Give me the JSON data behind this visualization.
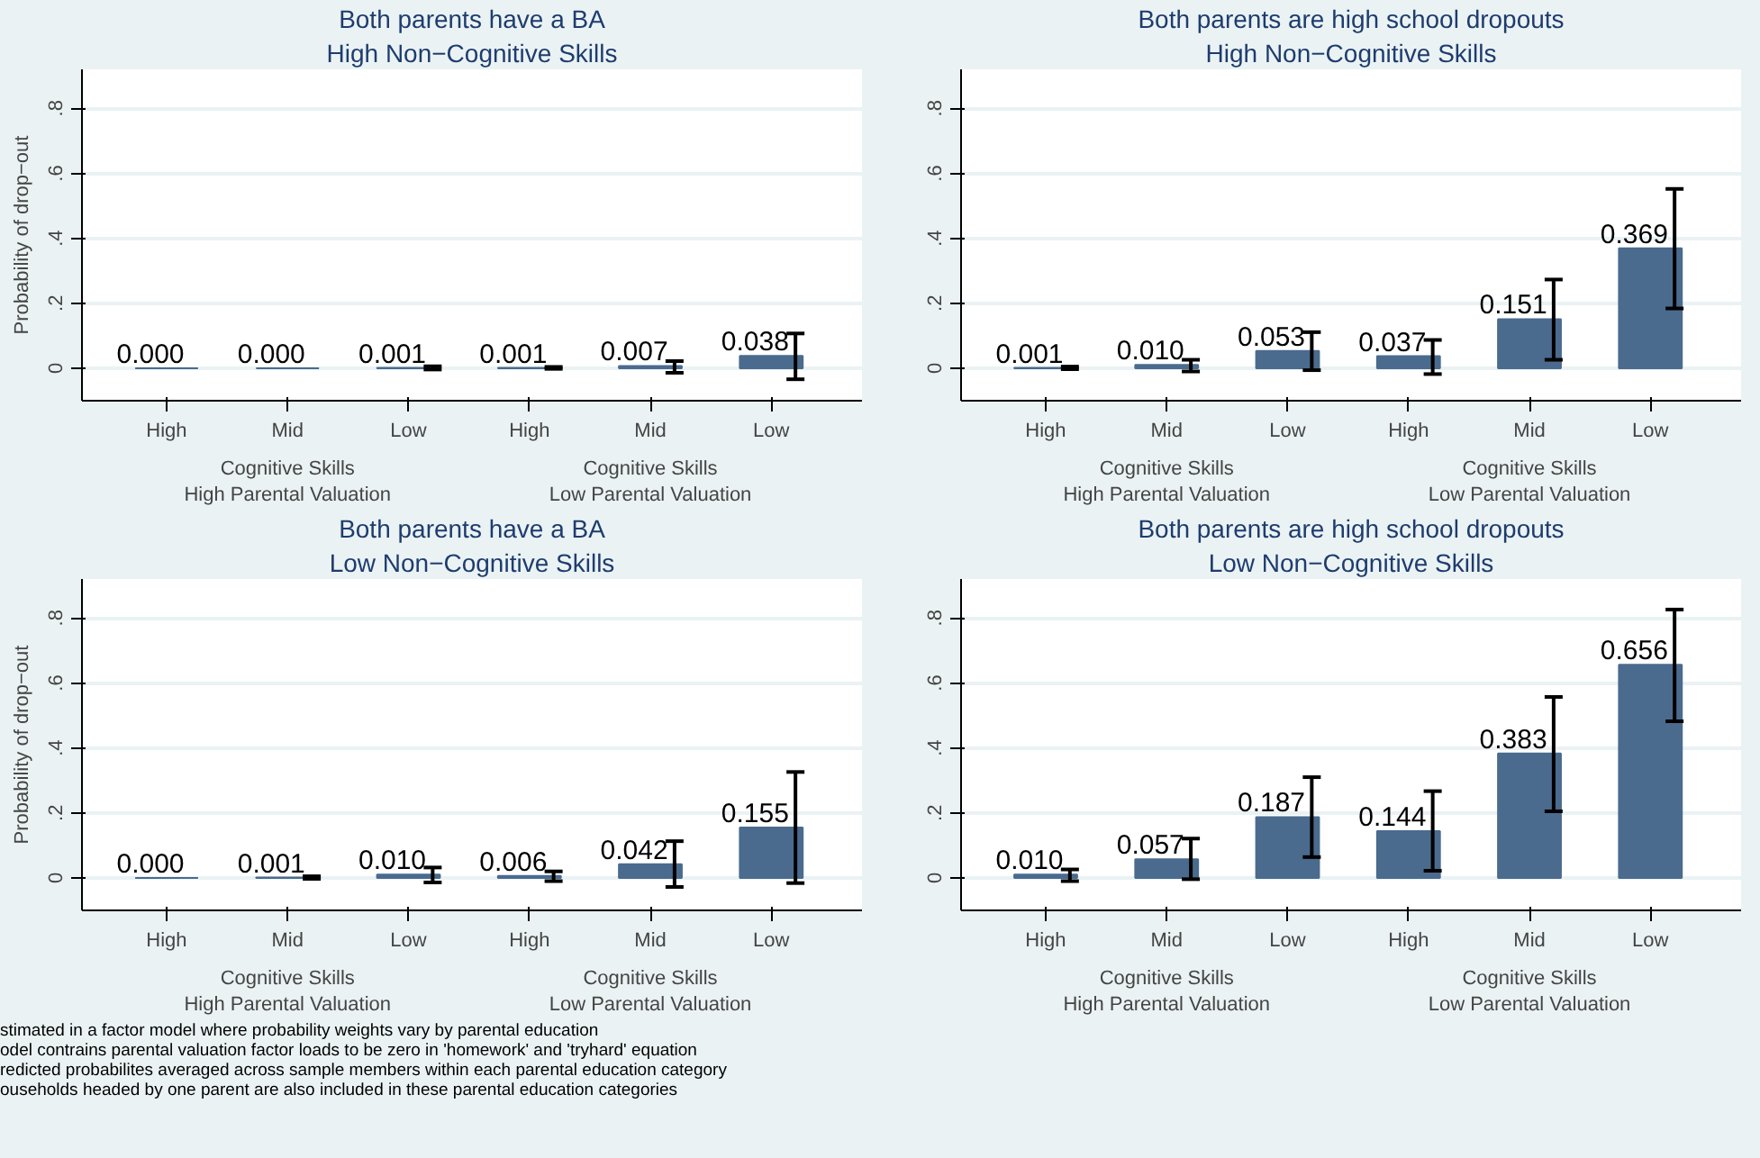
{
  "chart_data": [
    {
      "type": "bar",
      "title": "Both parents have a BA",
      "subtitle": "High Non−Cognitive Skills",
      "ylabel": "Probability of drop−out",
      "categories": [
        "High",
        "Mid",
        "Low",
        "High",
        "Mid",
        "Low"
      ],
      "values": [
        0.0,
        0.0,
        0.001,
        0.001,
        0.007,
        0.038
      ],
      "value_labels": [
        "0.000",
        "0.000",
        "0.001",
        "0.001",
        "0.007",
        "0.038"
      ],
      "errors": [
        null,
        null,
        [
          -0.004,
          0.006
        ],
        [
          -0.002,
          0.004
        ],
        [
          -0.014,
          0.022
        ],
        [
          -0.034,
          0.107
        ]
      ],
      "color": "#4a6b8e",
      "ylim": [
        -0.1,
        0.92
      ],
      "yticks": [
        {
          "value": 0,
          "label": "0"
        },
        {
          "value": 0.2,
          "label": ".2"
        },
        {
          "value": 0.4,
          "label": ".4"
        },
        {
          "value": 0.6,
          "label": ".6"
        },
        {
          "value": 0.8,
          "label": ".8"
        }
      ],
      "grid": "y",
      "annotations": [
        "Cognitive Skills\nHigh Parental Valuation",
        "Cognitive Skills\nLow Parental Valuation"
      ]
    },
    {
      "type": "bar",
      "title": "Both parents are high school dropouts",
      "subtitle": "High Non−Cognitive Skills",
      "categories": [
        "High",
        "Mid",
        "Low",
        "High",
        "Mid",
        "Low"
      ],
      "values": [
        0.001,
        0.01,
        0.053,
        0.037,
        0.151,
        0.369
      ],
      "value_labels": [
        "0.001",
        "0.010",
        "0.053",
        "0.037",
        "0.151",
        "0.369"
      ],
      "errors": [
        [
          -0.003,
          0.005
        ],
        [
          -0.01,
          0.026
        ],
        [
          -0.006,
          0.111
        ],
        [
          -0.018,
          0.087
        ],
        [
          0.026,
          0.273
        ],
        [
          0.184,
          0.552
        ]
      ],
      "color": "#4a6b8e",
      "ylim": [
        -0.1,
        0.92
      ],
      "yticks": [
        {
          "value": 0,
          "label": "0"
        },
        {
          "value": 0.2,
          "label": ".2"
        },
        {
          "value": 0.4,
          "label": ".4"
        },
        {
          "value": 0.6,
          "label": ".6"
        },
        {
          "value": 0.8,
          "label": ".8"
        }
      ],
      "grid": "y",
      "annotations": [
        "Cognitive Skills\nHigh Parental Valuation",
        "Cognitive Skills\nLow Parental Valuation"
      ]
    },
    {
      "type": "bar",
      "title": "Both parents have a BA",
      "subtitle": "Low Non−Cognitive Skills",
      "ylabel": "Probability of drop−out",
      "categories": [
        "High",
        "Mid",
        "Low",
        "High",
        "Mid",
        "Low"
      ],
      "values": [
        0.0,
        0.001,
        0.01,
        0.006,
        0.042,
        0.155
      ],
      "value_labels": [
        "0.000",
        "0.001",
        "0.010",
        "0.006",
        "0.042",
        "0.155"
      ],
      "errors": [
        null,
        [
          -0.003,
          0.005
        ],
        [
          -0.014,
          0.032
        ],
        [
          -0.01,
          0.02
        ],
        [
          -0.028,
          0.113
        ],
        [
          -0.016,
          0.326
        ]
      ],
      "color": "#4a6b8e",
      "ylim": [
        -0.1,
        0.92
      ],
      "yticks": [
        {
          "value": 0,
          "label": "0"
        },
        {
          "value": 0.2,
          "label": ".2"
        },
        {
          "value": 0.4,
          "label": ".4"
        },
        {
          "value": 0.6,
          "label": ".6"
        },
        {
          "value": 0.8,
          "label": ".8"
        }
      ],
      "grid": "y",
      "annotations": [
        "Cognitive Skills\nHigh Parental Valuation",
        "Cognitive Skills\nLow Parental Valuation"
      ]
    },
    {
      "type": "bar",
      "title": "Both parents are high school dropouts",
      "subtitle": "Low Non−Cognitive Skills",
      "categories": [
        "High",
        "Mid",
        "Low",
        "High",
        "Mid",
        "Low"
      ],
      "values": [
        0.01,
        0.057,
        0.187,
        0.144,
        0.383,
        0.656
      ],
      "value_labels": [
        "0.010",
        "0.057",
        "0.187",
        "0.144",
        "0.383",
        "0.656"
      ],
      "errors": [
        [
          -0.01,
          0.026
        ],
        [
          -0.004,
          0.121
        ],
        [
          0.064,
          0.31
        ],
        [
          0.022,
          0.267
        ],
        [
          0.205,
          0.557
        ],
        [
          0.482,
          0.826
        ]
      ],
      "color": "#4a6b8e",
      "ylim": [
        -0.1,
        0.92
      ],
      "yticks": [
        {
          "value": 0,
          "label": "0"
        },
        {
          "value": 0.2,
          "label": ".2"
        },
        {
          "value": 0.4,
          "label": ".4"
        },
        {
          "value": 0.6,
          "label": ".6"
        },
        {
          "value": 0.8,
          "label": ".8"
        }
      ],
      "grid": "y",
      "annotations": [
        "Cognitive Skills\nHigh Parental Valuation",
        "Cognitive Skills\nLow Parental Valuation"
      ]
    },
    {
      "type": "other",
      "annotations": [
        "stimated in a factor model where probability weights vary by parental education",
        "odel contrains parental valuation factor loads to be zero in 'homework' and 'tryhard' equation",
        "redicted probabilites averaged across sample members within each parental education category",
        "ouseholds headed by one parent are also included in these parental education categories"
      ]
    }
  ]
}
